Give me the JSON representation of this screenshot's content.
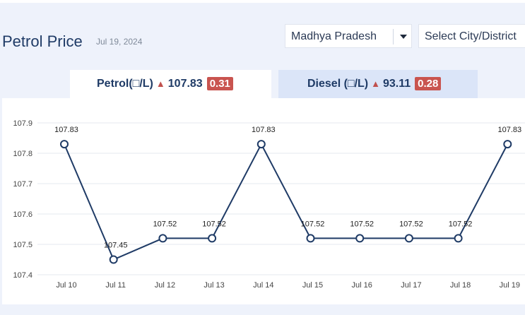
{
  "header": {
    "title": "Petrol Price",
    "date": "Jul 19, 2024",
    "state_select": "Madhya Pradesh",
    "city_select": "Select City/District"
  },
  "tabs": [
    {
      "label": "Petrol(□/L)",
      "price": "107.83",
      "change": "0.31",
      "direction": "up"
    },
    {
      "label": "Diesel (□/L)",
      "price": "93.11",
      "change": "0.28",
      "direction": "up"
    }
  ],
  "colors": {
    "line": "#1f3b66",
    "badge": "#c9544f",
    "up_arrow": "#c0504d",
    "active_tab": "#ffffff",
    "inactive_tab": "#dbe5f8",
    "background": "#eef2fb"
  },
  "chart_data": {
    "type": "line",
    "categories": [
      "Jul 10",
      "Jul 11",
      "Jul 12",
      "Jul 13",
      "Jul 14",
      "Jul 15",
      "Jul 16",
      "Jul 17",
      "Jul 18",
      "Jul 19"
    ],
    "values": [
      107.83,
      107.45,
      107.52,
      107.52,
      107.83,
      107.52,
      107.52,
      107.52,
      107.52,
      107.83
    ],
    "data_labels": [
      "107.83",
      "107.45",
      "107.52",
      "107.52",
      "107.83",
      "107.52",
      "107.52",
      "107.52",
      "107.52",
      "107.83"
    ],
    "ylim": [
      107.4,
      107.9
    ],
    "yticks": [
      "107.9",
      "107.8",
      "107.7",
      "107.6",
      "107.5",
      "107.4"
    ],
    "title": "",
    "xlabel": "",
    "ylabel": "",
    "grid": true
  }
}
